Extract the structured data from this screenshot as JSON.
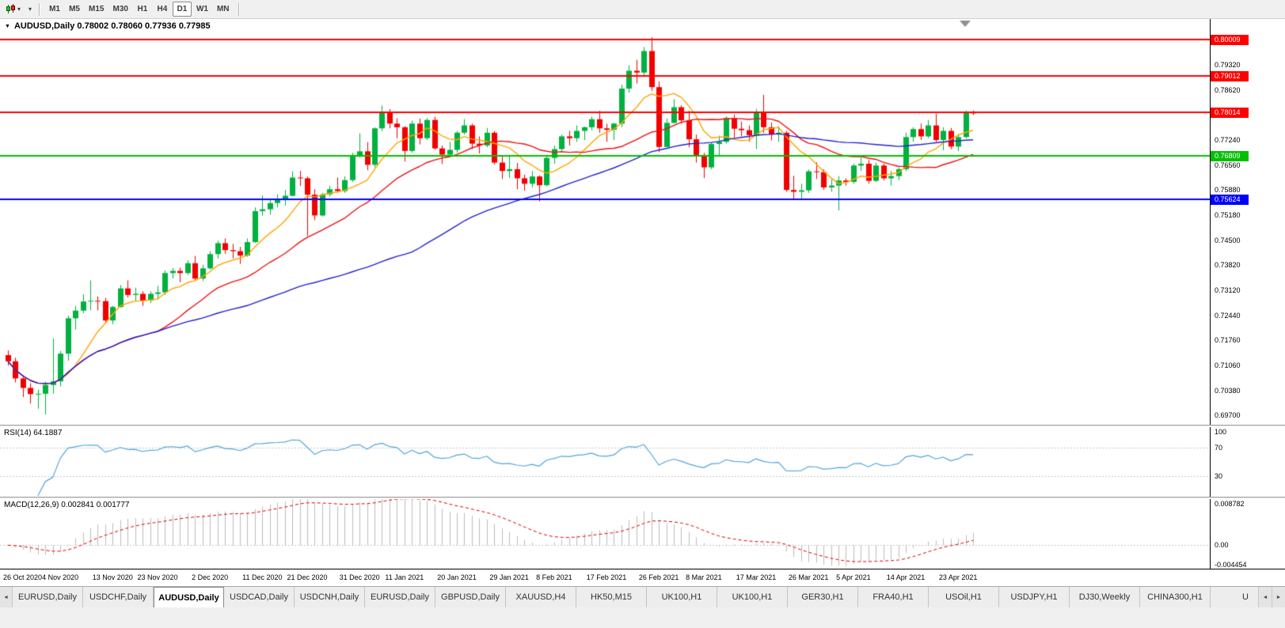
{
  "toolbar": {
    "timeframes": [
      "M1",
      "M5",
      "M15",
      "M30",
      "H1",
      "H4",
      "D1",
      "W1",
      "MN"
    ],
    "active_timeframe": "D1"
  },
  "icons": {
    "caret": "▾",
    "title_marker": "▼",
    "arrow_left": "◄",
    "arrow_right": "►"
  },
  "chart": {
    "title": "AUDUSD,Daily 0.78002 0.78060 0.77936 0.77985",
    "symbol": "AUDUSD",
    "timeframe": "Daily",
    "open": "0.78002",
    "high": "0.78060",
    "low": "0.77936",
    "close": "0.77985"
  },
  "colors": {
    "bull": "#00B140",
    "bear": "#F20000",
    "rsi_line": "#53A6DC",
    "macd_hist": "#BDBDBD",
    "macd_signal": "#E00000",
    "level_dash": "#C8C8C8"
  },
  "chart_data": {
    "type": "candlestick",
    "main": {
      "price_min": 0.6944,
      "price_max": 0.8057,
      "axis_labels": [
        "0.79320",
        "0.78620",
        "0.77240",
        "0.76560",
        "0.75880",
        "0.75180",
        "0.74500",
        "0.73820",
        "0.73120",
        "0.72440",
        "0.71760",
        "0.71060",
        "0.70380",
        "0.69700"
      ],
      "hlines": [
        {
          "price": 0.80009,
          "label": "0.80009",
          "color": "#FF0000"
        },
        {
          "price": 0.79012,
          "label": "0.79012",
          "color": "#FF0000"
        },
        {
          "price": 0.78014,
          "label": "0.78014",
          "color": "#FF0000"
        },
        {
          "price": 0.76809,
          "label": "0.76809",
          "color": "#00C000"
        },
        {
          "price": 0.75624,
          "label": "0.75624",
          "color": "#0000FF"
        }
      ],
      "moving_averages": [
        {
          "period": 8,
          "color": "#FFA500"
        },
        {
          "period": 21,
          "color": "#EE1111"
        },
        {
          "period": 55,
          "color": "#2222CC"
        }
      ],
      "candles": [
        [
          0.7135,
          0.7148,
          0.7106,
          0.7118
        ],
        [
          0.7118,
          0.7128,
          0.706,
          0.7071
        ],
        [
          0.7071,
          0.708,
          0.702,
          0.7045
        ],
        [
          0.7045,
          0.7058,
          0.7002,
          0.7028
        ],
        [
          0.7028,
          0.704,
          0.6988,
          0.7029
        ],
        [
          0.7029,
          0.7062,
          0.6972,
          0.7053
        ],
        [
          0.7053,
          0.718,
          0.7029,
          0.7063
        ],
        [
          0.7063,
          0.7146,
          0.7049,
          0.7139
        ],
        [
          0.7139,
          0.7243,
          0.712,
          0.7236
        ],
        [
          0.7236,
          0.727,
          0.7205,
          0.7257
        ],
        [
          0.7257,
          0.7302,
          0.725,
          0.7282
        ],
        [
          0.7282,
          0.734,
          0.7258,
          0.7284
        ],
        [
          0.7284,
          0.7296,
          0.7258,
          0.7283
        ],
        [
          0.7283,
          0.7292,
          0.7222,
          0.723
        ],
        [
          0.723,
          0.727,
          0.722,
          0.7267
        ],
        [
          0.7267,
          0.7327,
          0.7265,
          0.7318
        ],
        [
          0.7318,
          0.734,
          0.7293,
          0.73
        ],
        [
          0.73,
          0.732,
          0.7283,
          0.7303
        ],
        [
          0.7303,
          0.731,
          0.727,
          0.7285
        ],
        [
          0.7285,
          0.731,
          0.7278,
          0.7303
        ],
        [
          0.7303,
          0.7325,
          0.7287,
          0.7307
        ],
        [
          0.7307,
          0.7367,
          0.73,
          0.736
        ],
        [
          0.736,
          0.7374,
          0.7345,
          0.7366
        ],
        [
          0.7366,
          0.7375,
          0.7335,
          0.736
        ],
        [
          0.736,
          0.7395,
          0.7355,
          0.7387
        ],
        [
          0.7387,
          0.7407,
          0.7339,
          0.7345
        ],
        [
          0.7345,
          0.7383,
          0.7338,
          0.7373
        ],
        [
          0.7373,
          0.742,
          0.737,
          0.7412
        ],
        [
          0.7412,
          0.7449,
          0.74,
          0.7442
        ],
        [
          0.7442,
          0.7455,
          0.7413,
          0.7423
        ],
        [
          0.7423,
          0.744,
          0.74,
          0.742
        ],
        [
          0.742,
          0.7432,
          0.7385,
          0.7408
        ],
        [
          0.7408,
          0.7455,
          0.7405,
          0.7445
        ],
        [
          0.7445,
          0.754,
          0.7443,
          0.753
        ],
        [
          0.753,
          0.7573,
          0.7517,
          0.7535
        ],
        [
          0.7535,
          0.756,
          0.752,
          0.7552
        ],
        [
          0.7552,
          0.7576,
          0.754,
          0.756
        ],
        [
          0.756,
          0.7588,
          0.7545,
          0.7572
        ],
        [
          0.7572,
          0.7639,
          0.757,
          0.7622
        ],
        [
          0.7622,
          0.764,
          0.7599,
          0.762
        ],
        [
          0.762,
          0.7625,
          0.7462,
          0.7575
        ],
        [
          0.7575,
          0.759,
          0.7505,
          0.7518
        ],
        [
          0.7518,
          0.758,
          0.7515,
          0.7576
        ],
        [
          0.7576,
          0.76,
          0.757,
          0.759
        ],
        [
          0.759,
          0.7622,
          0.758,
          0.7585
        ],
        [
          0.7585,
          0.7625,
          0.758,
          0.7615
        ],
        [
          0.7615,
          0.769,
          0.761,
          0.7682
        ],
        [
          0.7682,
          0.7743,
          0.7677,
          0.7694
        ],
        [
          0.7694,
          0.7719,
          0.7642,
          0.7657
        ],
        [
          0.7657,
          0.776,
          0.765,
          0.7757
        ],
        [
          0.7757,
          0.782,
          0.775,
          0.78
        ],
        [
          0.78,
          0.781,
          0.7757,
          0.777
        ],
        [
          0.777,
          0.7785,
          0.773,
          0.776
        ],
        [
          0.776,
          0.7763,
          0.7666,
          0.7695
        ],
        [
          0.7695,
          0.7778,
          0.769,
          0.777
        ],
        [
          0.777,
          0.7784,
          0.7713,
          0.773
        ],
        [
          0.773,
          0.7785,
          0.7725,
          0.778
        ],
        [
          0.778,
          0.7789,
          0.7698,
          0.7702
        ],
        [
          0.7702,
          0.771,
          0.7659,
          0.7685
        ],
        [
          0.7685,
          0.772,
          0.768,
          0.7698
        ],
        [
          0.7698,
          0.775,
          0.769,
          0.7745
        ],
        [
          0.7745,
          0.7782,
          0.774,
          0.7765
        ],
        [
          0.7765,
          0.777,
          0.77,
          0.7715
        ],
        [
          0.7715,
          0.7735,
          0.7688,
          0.771
        ],
        [
          0.771,
          0.7758,
          0.7705,
          0.7745
        ],
        [
          0.7745,
          0.775,
          0.7658,
          0.7663
        ],
        [
          0.7663,
          0.768,
          0.7618,
          0.764
        ],
        [
          0.764,
          0.768,
          0.7621,
          0.7645
        ],
        [
          0.7645,
          0.7662,
          0.759,
          0.762
        ],
        [
          0.762,
          0.763,
          0.7586,
          0.7605
        ],
        [
          0.7605,
          0.764,
          0.7595,
          0.7625
        ],
        [
          0.7625,
          0.7628,
          0.7557,
          0.7601
        ],
        [
          0.7601,
          0.768,
          0.7598,
          0.7676
        ],
        [
          0.7676,
          0.771,
          0.766,
          0.77
        ],
        [
          0.77,
          0.774,
          0.7695,
          0.7735
        ],
        [
          0.7735,
          0.775,
          0.771,
          0.773
        ],
        [
          0.773,
          0.7765,
          0.772,
          0.775
        ],
        [
          0.775,
          0.7762,
          0.7725,
          0.776
        ],
        [
          0.776,
          0.779,
          0.7752,
          0.7782
        ],
        [
          0.7782,
          0.7805,
          0.7745,
          0.7757
        ],
        [
          0.7757,
          0.777,
          0.772,
          0.7753
        ],
        [
          0.7753,
          0.7772,
          0.7725,
          0.777
        ],
        [
          0.777,
          0.7877,
          0.776,
          0.7866
        ],
        [
          0.7866,
          0.793,
          0.7855,
          0.7915
        ],
        [
          0.7915,
          0.7945,
          0.788,
          0.791
        ],
        [
          0.791,
          0.798,
          0.79,
          0.7969
        ],
        [
          0.7969,
          0.8007,
          0.786,
          0.787
        ],
        [
          0.787,
          0.7885,
          0.7692,
          0.7706
        ],
        [
          0.7706,
          0.7784,
          0.7705,
          0.7772
        ],
        [
          0.7772,
          0.7837,
          0.777,
          0.7815
        ],
        [
          0.7815,
          0.782,
          0.777,
          0.7779
        ],
        [
          0.7779,
          0.7805,
          0.7705,
          0.7727
        ],
        [
          0.7727,
          0.774,
          0.7663,
          0.7684
        ],
        [
          0.7684,
          0.769,
          0.7621,
          0.765
        ],
        [
          0.765,
          0.7718,
          0.7645,
          0.7714
        ],
        [
          0.7714,
          0.7737,
          0.7683,
          0.772
        ],
        [
          0.772,
          0.779,
          0.7715,
          0.7785
        ],
        [
          0.7785,
          0.7795,
          0.773,
          0.7756
        ],
        [
          0.7756,
          0.7775,
          0.7735,
          0.7752
        ],
        [
          0.7752,
          0.7765,
          0.772,
          0.7738
        ],
        [
          0.7738,
          0.781,
          0.77,
          0.78
        ],
        [
          0.78,
          0.7849,
          0.7745,
          0.776
        ],
        [
          0.776,
          0.7773,
          0.7724,
          0.774
        ],
        [
          0.774,
          0.7763,
          0.772,
          0.7745
        ],
        [
          0.7745,
          0.775,
          0.7583,
          0.7588
        ],
        [
          0.7588,
          0.7627,
          0.756,
          0.7583
        ],
        [
          0.7583,
          0.7605,
          0.7562,
          0.7587
        ],
        [
          0.7587,
          0.7644,
          0.758,
          0.7639
        ],
        [
          0.7639,
          0.7664,
          0.7618,
          0.7637
        ],
        [
          0.7637,
          0.7645,
          0.7588,
          0.7595
        ],
        [
          0.7595,
          0.7618,
          0.7583,
          0.76
        ],
        [
          0.76,
          0.7626,
          0.7532,
          0.7614
        ],
        [
          0.7614,
          0.762,
          0.76,
          0.761
        ],
        [
          0.761,
          0.766,
          0.7605,
          0.7655
        ],
        [
          0.7655,
          0.7677,
          0.764,
          0.766
        ],
        [
          0.766,
          0.767,
          0.7605,
          0.7613
        ],
        [
          0.7613,
          0.7663,
          0.761,
          0.7655
        ],
        [
          0.7655,
          0.766,
          0.7614,
          0.762
        ],
        [
          0.762,
          0.764,
          0.76,
          0.7626
        ],
        [
          0.7626,
          0.765,
          0.7615,
          0.7645
        ],
        [
          0.7645,
          0.7745,
          0.764,
          0.7733
        ],
        [
          0.7733,
          0.776,
          0.772,
          0.7755
        ],
        [
          0.7755,
          0.777,
          0.7725,
          0.7735
        ],
        [
          0.7735,
          0.778,
          0.773,
          0.7765
        ],
        [
          0.7765,
          0.7797,
          0.772,
          0.7725
        ],
        [
          0.7725,
          0.776,
          0.7697,
          0.775
        ],
        [
          0.775,
          0.7758,
          0.77,
          0.7707
        ],
        [
          0.7707,
          0.7742,
          0.7695,
          0.7733
        ],
        [
          0.7733,
          0.7806,
          0.773,
          0.78
        ],
        [
          0.78002,
          0.7806,
          0.77936,
          0.77985
        ]
      ],
      "date_labels": [
        {
          "i": 0,
          "t": "26 Oct 2020"
        },
        {
          "i": 7,
          "t": "4 Nov 2020"
        },
        {
          "i": 14,
          "t": "13 Nov 2020"
        },
        {
          "i": 20,
          "t": "23 Nov 2020"
        },
        {
          "i": 27,
          "t": "2 Dec 2020"
        },
        {
          "i": 34,
          "t": "11 Dec 2020"
        },
        {
          "i": 40,
          "t": "21 Dec 2020"
        },
        {
          "i": 47,
          "t": "31 Dec 2020"
        },
        {
          "i": 53,
          "t": "11 Jan 2021"
        },
        {
          "i": 60,
          "t": "20 Jan 2021"
        },
        {
          "i": 67,
          "t": "29 Jan 2021"
        },
        {
          "i": 73,
          "t": "8 Feb 2021"
        },
        {
          "i": 80,
          "t": "17 Feb 2021"
        },
        {
          "i": 87,
          "t": "26 Feb 2021"
        },
        {
          "i": 93,
          "t": "8 Mar 2021"
        },
        {
          "i": 100,
          "t": "17 Mar 2021"
        },
        {
          "i": 107,
          "t": "26 Mar 2021"
        },
        {
          "i": 113,
          "t": "5 Apr 2021"
        },
        {
          "i": 120,
          "t": "14 Apr 2021"
        },
        {
          "i": 127,
          "t": "23 Apr 2021"
        }
      ]
    },
    "rsi": {
      "label": "RSI(14) 64.1887",
      "period": 14,
      "current": 64.1887,
      "levels": [
        70,
        30
      ],
      "axis_labels": [
        "100",
        "70",
        "30"
      ],
      "range": [
        0,
        100
      ]
    },
    "macd": {
      "label": "MACD(12,26,9) 0.002841 0.001777",
      "fast": 12,
      "slow": 26,
      "signal": 9,
      "macd_value": 0.002841,
      "signal_value": 0.001777,
      "axis_labels": [
        "0.008782",
        "0.00",
        "-0.004454"
      ],
      "range": [
        -0.004454,
        0.008782
      ]
    }
  },
  "tabs": {
    "items": [
      {
        "label": "EURUSD,Daily"
      },
      {
        "label": "USDCHF,Daily"
      },
      {
        "label": "AUDUSD,Daily",
        "active": true
      },
      {
        "label": "USDCAD,Daily"
      },
      {
        "label": "USDCNH,Daily"
      },
      {
        "label": "EURUSD,Daily"
      },
      {
        "label": "GBPUSD,Daily"
      },
      {
        "label": "XAUUSD,H4"
      },
      {
        "label": "HK50,M15"
      },
      {
        "label": "UK100,H1"
      },
      {
        "label": "UK100,H1"
      },
      {
        "label": "GER30,H1"
      },
      {
        "label": "FRA40,H1"
      },
      {
        "label": "USOil,H1"
      },
      {
        "label": "USDJPY,H1"
      },
      {
        "label": "DJ30,Weekly"
      },
      {
        "label": "CHINA300,H1"
      },
      {
        "label": "U"
      }
    ]
  }
}
